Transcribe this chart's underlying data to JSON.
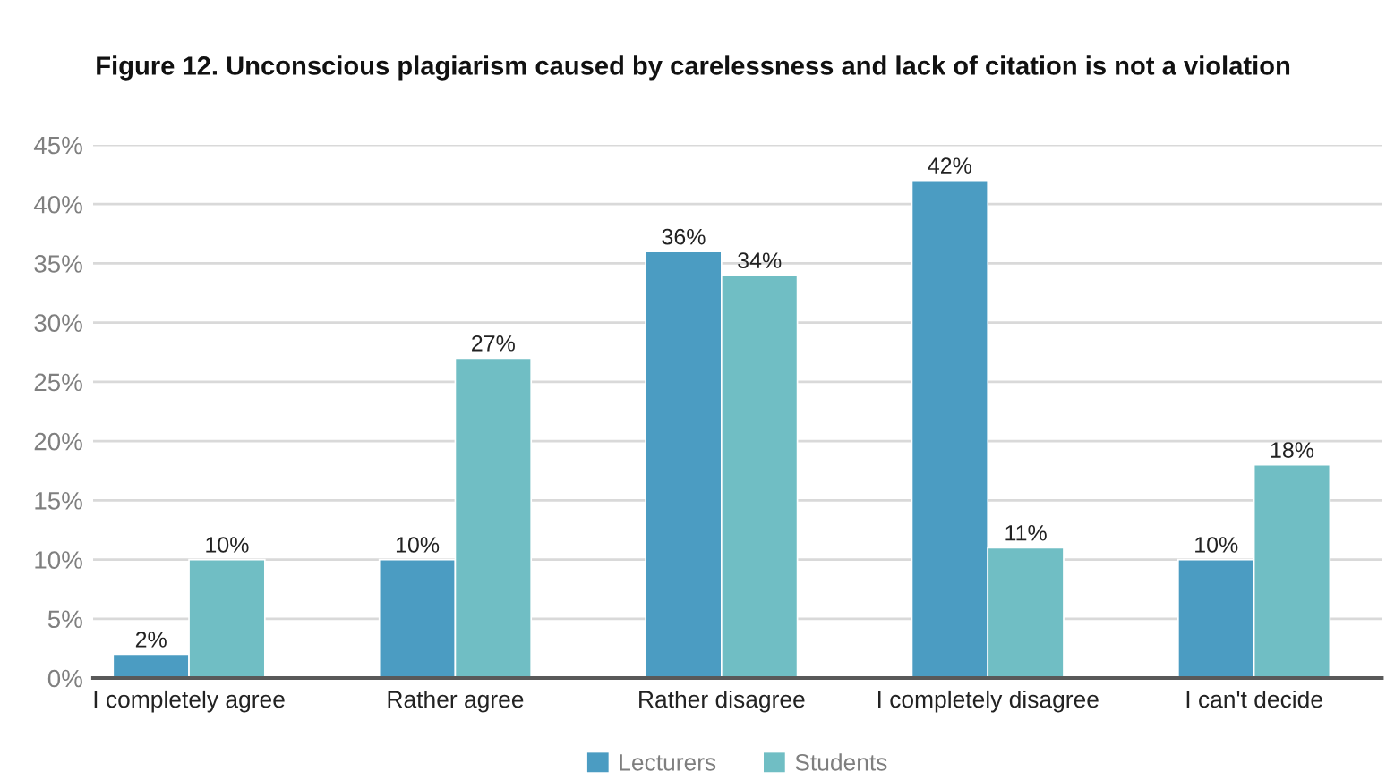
{
  "chart_data": {
    "type": "bar",
    "title": "Figure 12. Unconscious plagiarism caused by carelessness and lack of citation is not a violation",
    "categories": [
      "I completely agree",
      "Rather agree",
      "Rather disagree",
      "I completely disagree",
      "I can't decide"
    ],
    "series": [
      {
        "name": "Lecturers",
        "color": "#4b9cc2",
        "values": [
          2,
          10,
          36,
          42,
          10
        ],
        "value_labels": [
          "2%",
          "10%",
          "36%",
          "42%",
          "10%"
        ]
      },
      {
        "name": "Students",
        "color": "#70bec4",
        "values": [
          10,
          27,
          34,
          11,
          18
        ],
        "value_labels": [
          "10%",
          "27%",
          "34%",
          "11%",
          "18%"
        ]
      }
    ],
    "ylim": [
      0,
      45
    ],
    "yticks": [
      {
        "value": 0,
        "label": "0%"
      },
      {
        "value": 5,
        "label": "5%"
      },
      {
        "value": 10,
        "label": "10%"
      },
      {
        "value": 15,
        "label": "15%"
      },
      {
        "value": 20,
        "label": "20%"
      },
      {
        "value": 25,
        "label": "25%"
      },
      {
        "value": 30,
        "label": "30%"
      },
      {
        "value": 35,
        "label": "35%"
      },
      {
        "value": 40,
        "label": "40%"
      },
      {
        "value": 45,
        "label": "45%"
      }
    ],
    "grid": "y",
    "legend": "bottom"
  }
}
